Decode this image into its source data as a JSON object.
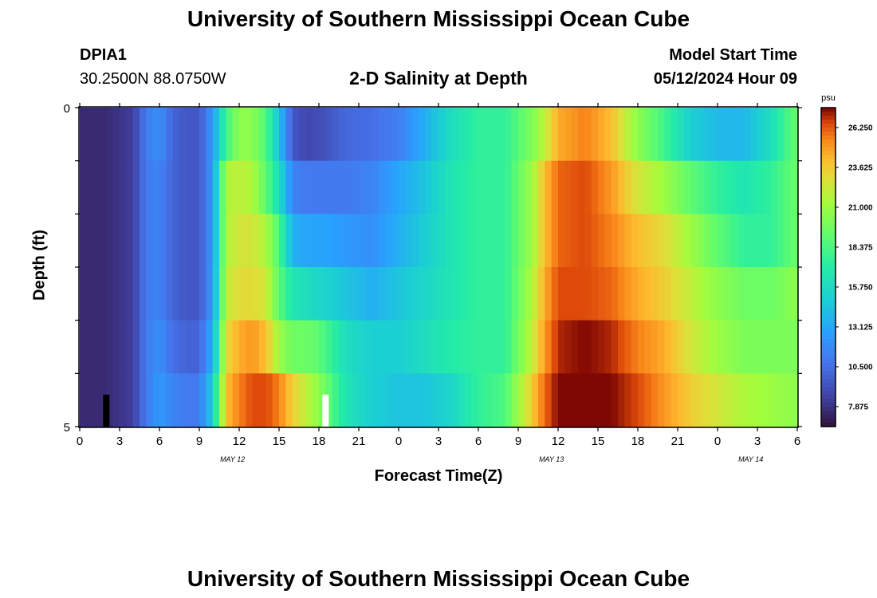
{
  "header": {
    "title": "University of Southern Mississippi Ocean Cube",
    "station_id": "DPIA1",
    "coordinates": "30.2500N  88.0750W",
    "plot_title": "2-D Salinity at Depth",
    "model_start_label": "Model Start Time",
    "model_start_value": "05/12/2024 Hour 09"
  },
  "footer": {
    "title": "University of Southern Mississippi Ocean Cube"
  },
  "chart_data": {
    "type": "heatmap",
    "title": "2-D Salinity at Depth",
    "xlabel": "Forecast Time(Z)",
    "ylabel": "Depth (ft)",
    "x_start_hour": 0,
    "x_end_hour": 54,
    "xlim": [
      "05/12 00Z",
      "05/14 06Z"
    ],
    "ylim": [
      0,
      5
    ],
    "x_tick_labels": [
      "0",
      "3",
      "6",
      "9",
      "12",
      "15",
      "18",
      "21",
      "0",
      "3",
      "6",
      "9",
      "12",
      "15",
      "18",
      "21",
      "0",
      "3",
      "6"
    ],
    "y_tick_labels": [
      "0",
      "5"
    ],
    "date_labels": [
      {
        "text": "MAY 12",
        "hour": 11.5
      },
      {
        "text": "MAY 13",
        "hour": 35.5
      },
      {
        "text": "MAY 14",
        "hour": 50.5
      }
    ],
    "colorbar": {
      "unit": "psu",
      "min": 6.56,
      "max": 27.56,
      "tick_labels": [
        "7.875",
        "10.500",
        "13.125",
        "15.750",
        "18.375",
        "21.000",
        "23.625",
        "26.250"
      ],
      "tick_values": [
        7.875,
        10.5,
        13.125,
        15.75,
        18.375,
        21.0,
        23.625,
        26.25
      ]
    },
    "depth_layers": [
      0,
      1,
      2,
      3,
      4,
      5
    ],
    "anchor_hours": [
      0,
      2,
      3,
      4,
      5,
      6,
      7,
      8,
      9,
      10,
      11,
      12,
      13,
      14,
      15,
      16,
      17,
      18,
      20,
      22,
      24,
      26,
      28,
      30,
      32,
      34,
      35,
      36,
      38,
      40,
      42,
      44,
      46,
      48,
      50,
      52,
      54
    ],
    "salinity_by_layer": [
      [
        7.6,
        7.6,
        8.0,
        8.4,
        11.0,
        12.0,
        10.0,
        9.5,
        9.5,
        12.5,
        18.0,
        20.5,
        20.5,
        18.5,
        14.5,
        9.5,
        8.8,
        9.0,
        10.2,
        10.5,
        11.2,
        13.5,
        16.0,
        17.5,
        17.5,
        20.0,
        22.0,
        24.5,
        25.5,
        24.0,
        20.5,
        18.0,
        15.0,
        14.0,
        13.8,
        16.0,
        19.5
      ],
      [
        7.6,
        7.6,
        8.0,
        8.4,
        11.0,
        11.5,
        10.0,
        9.5,
        9.5,
        12.5,
        21.5,
        22.0,
        21.5,
        19.0,
        16.0,
        11.5,
        11.0,
        11.0,
        11.0,
        11.5,
        13.0,
        14.5,
        16.5,
        17.5,
        17.5,
        21.0,
        24.0,
        26.0,
        26.5,
        25.0,
        22.5,
        21.0,
        19.0,
        17.5,
        16.5,
        17.5,
        19.5
      ],
      [
        7.6,
        7.6,
        8.0,
        8.4,
        11.0,
        11.5,
        10.0,
        9.5,
        9.5,
        12.5,
        21.5,
        22.5,
        22.5,
        21.5,
        18.5,
        13.5,
        13.0,
        13.0,
        12.5,
        12.0,
        13.5,
        15.0,
        16.5,
        17.5,
        17.5,
        21.0,
        24.0,
        26.0,
        26.5,
        25.5,
        24.0,
        23.0,
        21.0,
        19.0,
        17.5,
        17.5,
        19.5
      ],
      [
        7.6,
        7.6,
        8.0,
        8.4,
        11.0,
        11.5,
        10.0,
        9.5,
        9.5,
        12.5,
        22.0,
        23.0,
        23.0,
        22.5,
        19.0,
        16.5,
        16.0,
        15.5,
        14.5,
        13.5,
        14.5,
        15.5,
        16.5,
        17.5,
        17.5,
        21.5,
        24.5,
        26.5,
        26.5,
        26.0,
        24.5,
        23.5,
        22.0,
        20.5,
        19.5,
        19.5,
        20.5
      ],
      [
        7.6,
        7.6,
        8.0,
        8.4,
        11.0,
        12.0,
        10.5,
        10.0,
        10.0,
        13.5,
        23.0,
        24.5,
        25.0,
        24.0,
        21.0,
        19.5,
        19.5,
        19.0,
        16.0,
        15.0,
        15.0,
        16.0,
        17.0,
        17.5,
        17.5,
        22.0,
        25.0,
        27.0,
        27.5,
        27.0,
        25.5,
        24.5,
        22.5,
        21.0,
        20.0,
        20.0,
        20.0
      ],
      [
        7.6,
        7.6,
        8.0,
        8.4,
        11.0,
        12.5,
        11.5,
        11.0,
        11.0,
        15.0,
        24.0,
        25.5,
        26.5,
        26.5,
        25.5,
        23.5,
        22.0,
        20.5,
        16.5,
        15.0,
        14.5,
        14.5,
        15.5,
        17.5,
        18.5,
        23.5,
        26.0,
        27.5,
        27.5,
        27.5,
        26.5,
        25.0,
        23.5,
        22.5,
        21.5,
        21.0,
        20.5
      ]
    ],
    "bottom_markers": [
      {
        "hour": 2.0,
        "color": "#000000"
      },
      {
        "hour": 18.5,
        "color": "#ffffff"
      }
    ]
  }
}
